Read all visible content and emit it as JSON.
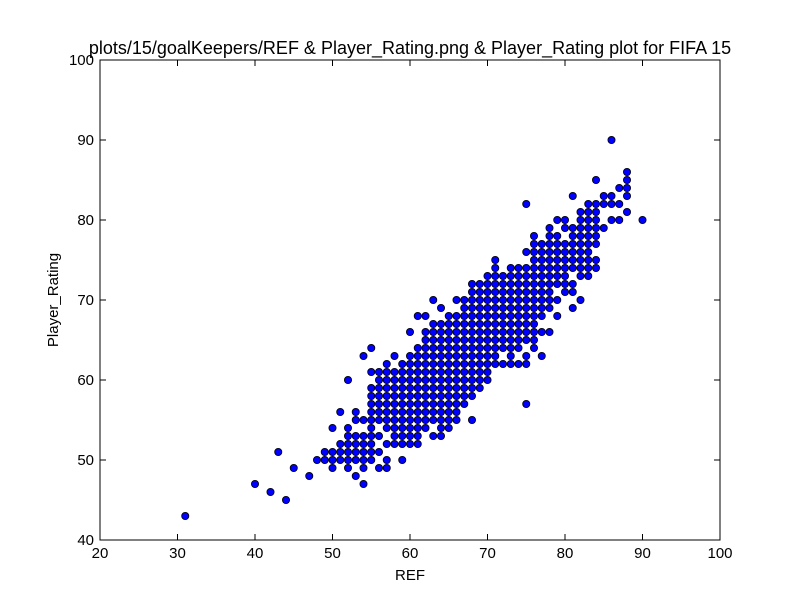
{
  "chart_data": {
    "type": "scatter",
    "title": "plots/15/goalKeepers/REF & Player_Rating.png & Player_Rating plot for FIFA 15",
    "xlabel": "REF",
    "ylabel": "Player_Rating",
    "xlim": [
      20,
      100
    ],
    "ylim": [
      40,
      100
    ],
    "xticks": [
      20,
      30,
      40,
      50,
      60,
      70,
      80,
      90,
      100
    ],
    "yticks": [
      40,
      50,
      60,
      70,
      80,
      90,
      100
    ],
    "xtick_labels": [
      "20",
      "30",
      "40",
      "50",
      "60",
      "70",
      "80",
      "90",
      "100"
    ],
    "ytick_labels": [
      "40",
      "50",
      "60",
      "70",
      "80",
      "90",
      "100"
    ],
    "grid": false,
    "marker_color": "#0000ff",
    "marker_edge": "#000000",
    "points": [
      [
        31,
        43
      ],
      [
        40,
        47
      ],
      [
        42,
        46
      ],
      [
        43,
        51
      ],
      [
        44,
        45
      ],
      [
        45,
        49
      ],
      [
        47,
        48
      ],
      [
        48,
        50
      ],
      [
        49,
        50
      ],
      [
        49,
        51
      ],
      [
        50,
        49
      ],
      [
        50,
        50
      ],
      [
        50,
        51
      ],
      [
        50,
        54
      ],
      [
        51,
        50
      ],
      [
        51,
        51
      ],
      [
        51,
        52
      ],
      [
        51,
        56
      ],
      [
        52,
        49
      ],
      [
        52,
        50
      ],
      [
        52,
        51
      ],
      [
        52,
        52
      ],
      [
        52,
        53
      ],
      [
        52,
        54
      ],
      [
        52,
        60
      ],
      [
        53,
        48
      ],
      [
        53,
        50
      ],
      [
        53,
        51
      ],
      [
        53,
        52
      ],
      [
        53,
        53
      ],
      [
        53,
        55
      ],
      [
        53,
        56
      ],
      [
        54,
        47
      ],
      [
        54,
        49
      ],
      [
        54,
        50
      ],
      [
        54,
        51
      ],
      [
        54,
        52
      ],
      [
        54,
        53
      ],
      [
        54,
        55
      ],
      [
        54,
        63
      ],
      [
        55,
        50
      ],
      [
        55,
        51
      ],
      [
        55,
        52
      ],
      [
        55,
        53
      ],
      [
        55,
        54
      ],
      [
        55,
        55
      ],
      [
        55,
        56
      ],
      [
        55,
        57
      ],
      [
        55,
        58
      ],
      [
        55,
        59
      ],
      [
        55,
        61
      ],
      [
        55,
        64
      ],
      [
        56,
        49
      ],
      [
        56,
        51
      ],
      [
        56,
        53
      ],
      [
        56,
        55
      ],
      [
        56,
        56
      ],
      [
        56,
        57
      ],
      [
        56,
        58
      ],
      [
        56,
        59
      ],
      [
        56,
        60
      ],
      [
        56,
        61
      ],
      [
        57,
        49
      ],
      [
        57,
        50
      ],
      [
        57,
        52
      ],
      [
        57,
        54
      ],
      [
        57,
        55
      ],
      [
        57,
        56
      ],
      [
        57,
        57
      ],
      [
        57,
        58
      ],
      [
        57,
        59
      ],
      [
        57,
        60
      ],
      [
        57,
        61
      ],
      [
        57,
        62
      ],
      [
        58,
        52
      ],
      [
        58,
        53
      ],
      [
        58,
        54
      ],
      [
        58,
        55
      ],
      [
        58,
        56
      ],
      [
        58,
        57
      ],
      [
        58,
        58
      ],
      [
        58,
        59
      ],
      [
        58,
        60
      ],
      [
        58,
        61
      ],
      [
        58,
        63
      ],
      [
        59,
        50
      ],
      [
        59,
        52
      ],
      [
        59,
        53
      ],
      [
        59,
        54
      ],
      [
        59,
        55
      ],
      [
        59,
        56
      ],
      [
        59,
        57
      ],
      [
        59,
        58
      ],
      [
        59,
        59
      ],
      [
        59,
        60
      ],
      [
        59,
        61
      ],
      [
        59,
        62
      ],
      [
        60,
        52
      ],
      [
        60,
        53
      ],
      [
        60,
        54
      ],
      [
        60,
        55
      ],
      [
        60,
        56
      ],
      [
        60,
        57
      ],
      [
        60,
        58
      ],
      [
        60,
        59
      ],
      [
        60,
        60
      ],
      [
        60,
        61
      ],
      [
        60,
        62
      ],
      [
        60,
        63
      ],
      [
        60,
        66
      ],
      [
        61,
        52
      ],
      [
        61,
        53
      ],
      [
        61,
        54
      ],
      [
        61,
        55
      ],
      [
        61,
        56
      ],
      [
        61,
        57
      ],
      [
        61,
        58
      ],
      [
        61,
        59
      ],
      [
        61,
        60
      ],
      [
        61,
        61
      ],
      [
        61,
        62
      ],
      [
        61,
        63
      ],
      [
        61,
        64
      ],
      [
        61,
        68
      ],
      [
        62,
        54
      ],
      [
        62,
        55
      ],
      [
        62,
        56
      ],
      [
        62,
        57
      ],
      [
        62,
        58
      ],
      [
        62,
        59
      ],
      [
        62,
        60
      ],
      [
        62,
        61
      ],
      [
        62,
        62
      ],
      [
        62,
        63
      ],
      [
        62,
        64
      ],
      [
        62,
        65
      ],
      [
        62,
        66
      ],
      [
        62,
        68
      ],
      [
        63,
        53
      ],
      [
        63,
        55
      ],
      [
        63,
        56
      ],
      [
        63,
        57
      ],
      [
        63,
        58
      ],
      [
        63,
        59
      ],
      [
        63,
        60
      ],
      [
        63,
        61
      ],
      [
        63,
        62
      ],
      [
        63,
        63
      ],
      [
        63,
        64
      ],
      [
        63,
        65
      ],
      [
        63,
        66
      ],
      [
        63,
        67
      ],
      [
        63,
        70
      ],
      [
        64,
        53
      ],
      [
        64,
        54
      ],
      [
        64,
        55
      ],
      [
        64,
        56
      ],
      [
        64,
        57
      ],
      [
        64,
        58
      ],
      [
        64,
        59
      ],
      [
        64,
        60
      ],
      [
        64,
        61
      ],
      [
        64,
        62
      ],
      [
        64,
        63
      ],
      [
        64,
        64
      ],
      [
        64,
        65
      ],
      [
        64,
        66
      ],
      [
        64,
        67
      ],
      [
        64,
        69
      ],
      [
        65,
        54
      ],
      [
        65,
        55
      ],
      [
        65,
        56
      ],
      [
        65,
        57
      ],
      [
        65,
        58
      ],
      [
        65,
        59
      ],
      [
        65,
        60
      ],
      [
        65,
        61
      ],
      [
        65,
        62
      ],
      [
        65,
        63
      ],
      [
        65,
        64
      ],
      [
        65,
        65
      ],
      [
        65,
        66
      ],
      [
        65,
        67
      ],
      [
        65,
        68
      ],
      [
        66,
        55
      ],
      [
        66,
        56
      ],
      [
        66,
        57
      ],
      [
        66,
        58
      ],
      [
        66,
        59
      ],
      [
        66,
        60
      ],
      [
        66,
        61
      ],
      [
        66,
        62
      ],
      [
        66,
        63
      ],
      [
        66,
        64
      ],
      [
        66,
        65
      ],
      [
        66,
        66
      ],
      [
        66,
        67
      ],
      [
        66,
        68
      ],
      [
        66,
        70
      ],
      [
        67,
        57
      ],
      [
        67,
        58
      ],
      [
        67,
        59
      ],
      [
        67,
        60
      ],
      [
        67,
        61
      ],
      [
        67,
        62
      ],
      [
        67,
        63
      ],
      [
        67,
        64
      ],
      [
        67,
        65
      ],
      [
        67,
        66
      ],
      [
        67,
        67
      ],
      [
        67,
        68
      ],
      [
        67,
        69
      ],
      [
        67,
        70
      ],
      [
        68,
        55
      ],
      [
        68,
        58
      ],
      [
        68,
        59
      ],
      [
        68,
        60
      ],
      [
        68,
        61
      ],
      [
        68,
        62
      ],
      [
        68,
        63
      ],
      [
        68,
        64
      ],
      [
        68,
        65
      ],
      [
        68,
        66
      ],
      [
        68,
        67
      ],
      [
        68,
        68
      ],
      [
        68,
        69
      ],
      [
        68,
        70
      ],
      [
        68,
        71
      ],
      [
        68,
        72
      ],
      [
        69,
        59
      ],
      [
        69,
        60
      ],
      [
        69,
        61
      ],
      [
        69,
        62
      ],
      [
        69,
        63
      ],
      [
        69,
        64
      ],
      [
        69,
        65
      ],
      [
        69,
        66
      ],
      [
        69,
        67
      ],
      [
        69,
        68
      ],
      [
        69,
        69
      ],
      [
        69,
        70
      ],
      [
        69,
        71
      ],
      [
        69,
        72
      ],
      [
        70,
        60
      ],
      [
        70,
        61
      ],
      [
        70,
        62
      ],
      [
        70,
        63
      ],
      [
        70,
        64
      ],
      [
        70,
        65
      ],
      [
        70,
        66
      ],
      [
        70,
        67
      ],
      [
        70,
        68
      ],
      [
        70,
        69
      ],
      [
        70,
        70
      ],
      [
        70,
        71
      ],
      [
        70,
        72
      ],
      [
        70,
        73
      ],
      [
        71,
        62
      ],
      [
        71,
        63
      ],
      [
        71,
        64
      ],
      [
        71,
        65
      ],
      [
        71,
        66
      ],
      [
        71,
        67
      ],
      [
        71,
        68
      ],
      [
        71,
        69
      ],
      [
        71,
        70
      ],
      [
        71,
        71
      ],
      [
        71,
        72
      ],
      [
        71,
        73
      ],
      [
        71,
        74
      ],
      [
        71,
        75
      ],
      [
        72,
        62
      ],
      [
        72,
        64
      ],
      [
        72,
        65
      ],
      [
        72,
        66
      ],
      [
        72,
        67
      ],
      [
        72,
        68
      ],
      [
        72,
        69
      ],
      [
        72,
        70
      ],
      [
        72,
        71
      ],
      [
        72,
        72
      ],
      [
        72,
        73
      ],
      [
        73,
        62
      ],
      [
        73,
        63
      ],
      [
        73,
        64
      ],
      [
        73,
        65
      ],
      [
        73,
        66
      ],
      [
        73,
        67
      ],
      [
        73,
        68
      ],
      [
        73,
        69
      ],
      [
        73,
        70
      ],
      [
        73,
        71
      ],
      [
        73,
        72
      ],
      [
        73,
        73
      ],
      [
        73,
        74
      ],
      [
        74,
        62
      ],
      [
        74,
        64
      ],
      [
        74,
        65
      ],
      [
        74,
        66
      ],
      [
        74,
        67
      ],
      [
        74,
        68
      ],
      [
        74,
        69
      ],
      [
        74,
        70
      ],
      [
        74,
        71
      ],
      [
        74,
        72
      ],
      [
        74,
        73
      ],
      [
        74,
        74
      ],
      [
        75,
        57
      ],
      [
        75,
        62
      ],
      [
        75,
        63
      ],
      [
        75,
        65
      ],
      [
        75,
        66
      ],
      [
        75,
        67
      ],
      [
        75,
        68
      ],
      [
        75,
        69
      ],
      [
        75,
        70
      ],
      [
        75,
        71
      ],
      [
        75,
        72
      ],
      [
        75,
        73
      ],
      [
        75,
        74
      ],
      [
        75,
        76
      ],
      [
        75,
        82
      ],
      [
        76,
        64
      ],
      [
        76,
        65
      ],
      [
        76,
        66
      ],
      [
        76,
        67
      ],
      [
        76,
        68
      ],
      [
        76,
        69
      ],
      [
        76,
        70
      ],
      [
        76,
        71
      ],
      [
        76,
        72
      ],
      [
        76,
        73
      ],
      [
        76,
        74
      ],
      [
        76,
        75
      ],
      [
        76,
        76
      ],
      [
        76,
        77
      ],
      [
        76,
        78
      ],
      [
        77,
        63
      ],
      [
        77,
        66
      ],
      [
        77,
        68
      ],
      [
        77,
        69
      ],
      [
        77,
        70
      ],
      [
        77,
        71
      ],
      [
        77,
        72
      ],
      [
        77,
        73
      ],
      [
        77,
        74
      ],
      [
        77,
        75
      ],
      [
        77,
        76
      ],
      [
        77,
        77
      ],
      [
        78,
        66
      ],
      [
        78,
        69
      ],
      [
        78,
        70
      ],
      [
        78,
        71
      ],
      [
        78,
        72
      ],
      [
        78,
        73
      ],
      [
        78,
        74
      ],
      [
        78,
        75
      ],
      [
        78,
        76
      ],
      [
        78,
        77
      ],
      [
        78,
        78
      ],
      [
        78,
        79
      ],
      [
        79,
        68
      ],
      [
        79,
        70
      ],
      [
        79,
        72
      ],
      [
        79,
        73
      ],
      [
        79,
        74
      ],
      [
        79,
        75
      ],
      [
        79,
        76
      ],
      [
        79,
        77
      ],
      [
        79,
        78
      ],
      [
        79,
        80
      ],
      [
        80,
        71
      ],
      [
        80,
        72
      ],
      [
        80,
        73
      ],
      [
        80,
        74
      ],
      [
        80,
        75
      ],
      [
        80,
        76
      ],
      [
        80,
        77
      ],
      [
        80,
        79
      ],
      [
        80,
        80
      ],
      [
        81,
        69
      ],
      [
        81,
        71
      ],
      [
        81,
        72
      ],
      [
        81,
        74
      ],
      [
        81,
        75
      ],
      [
        81,
        76
      ],
      [
        81,
        77
      ],
      [
        81,
        78
      ],
      [
        81,
        79
      ],
      [
        81,
        83
      ],
      [
        82,
        70
      ],
      [
        82,
        73
      ],
      [
        82,
        74
      ],
      [
        82,
        75
      ],
      [
        82,
        76
      ],
      [
        82,
        77
      ],
      [
        82,
        78
      ],
      [
        82,
        79
      ],
      [
        82,
        80
      ],
      [
        82,
        81
      ],
      [
        83,
        73
      ],
      [
        83,
        74
      ],
      [
        83,
        75
      ],
      [
        83,
        76
      ],
      [
        83,
        77
      ],
      [
        83,
        78
      ],
      [
        83,
        79
      ],
      [
        83,
        80
      ],
      [
        83,
        81
      ],
      [
        83,
        82
      ],
      [
        84,
        74
      ],
      [
        84,
        75
      ],
      [
        84,
        77
      ],
      [
        84,
        78
      ],
      [
        84,
        79
      ],
      [
        84,
        80
      ],
      [
        84,
        81
      ],
      [
        84,
        82
      ],
      [
        84,
        85
      ],
      [
        85,
        79
      ],
      [
        85,
        82
      ],
      [
        85,
        83
      ],
      [
        86,
        80
      ],
      [
        86,
        82
      ],
      [
        86,
        83
      ],
      [
        86,
        90
      ],
      [
        87,
        80
      ],
      [
        87,
        82
      ],
      [
        87,
        84
      ],
      [
        88,
        81
      ],
      [
        88,
        83
      ],
      [
        88,
        84
      ],
      [
        88,
        85
      ],
      [
        88,
        86
      ],
      [
        90,
        80
      ]
    ]
  }
}
